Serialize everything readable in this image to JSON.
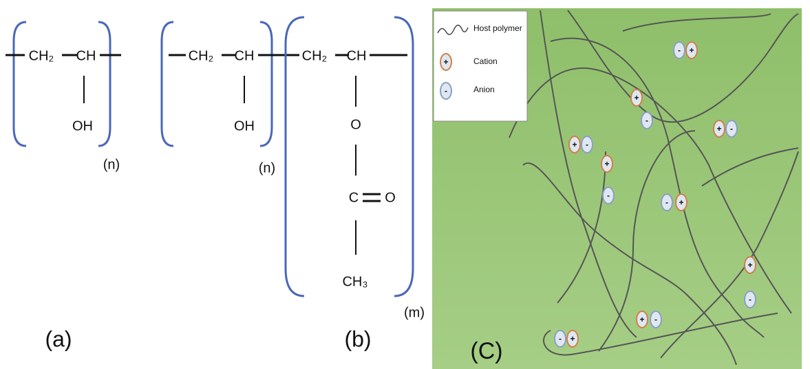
{
  "panel_a": {
    "ch2": "CH₂",
    "ch": "CH",
    "oh": "OH",
    "repeat": "(n)",
    "label": "(a)"
  },
  "panel_b": {
    "unit1": {
      "ch2": "CH₂",
      "ch": "CH",
      "oh": "OH",
      "repeat": "(n)"
    },
    "unit2": {
      "ch2": "CH₂",
      "ch": "CH",
      "o": "O",
      "c": "C",
      "carbonyl_o": "O",
      "ch3": "CH₃",
      "repeat": "(m)"
    },
    "label": "(b)"
  },
  "panel_c": {
    "legend": {
      "host_polymer": "Host polymer",
      "cation": "Cation",
      "anion": "Anion",
      "cation_sign": "+",
      "anion_sign": "-"
    },
    "label": "(C)"
  }
}
